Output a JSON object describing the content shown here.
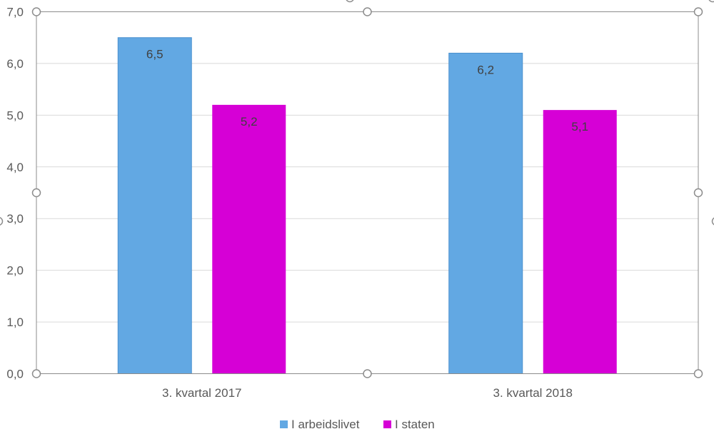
{
  "chart_data": {
    "type": "bar",
    "categories": [
      "3. kvartal 2017",
      "3. kvartal 2018"
    ],
    "series": [
      {
        "name": "I arbeidslivet",
        "values": [
          6.5,
          6.2
        ],
        "data_labels": [
          "6,5",
          "6,2"
        ],
        "color": "#62A8E3"
      },
      {
        "name": "I staten",
        "values": [
          5.2,
          5.1
        ],
        "data_labels": [
          "5,2",
          "5,1"
        ],
        "color": "#D600D6"
      }
    ],
    "ylim": [
      0,
      7
    ],
    "yticks": [
      0,
      1,
      2,
      3,
      4,
      5,
      6,
      7
    ],
    "ytick_labels": [
      "0,0",
      "1,0",
      "2,0",
      "3,0",
      "4,0",
      "5,0",
      "6,0",
      "7,0"
    ],
    "grid": true,
    "legend_position": "bottom",
    "title": "",
    "xlabel": "",
    "ylabel": ""
  },
  "colors": {
    "gridline": "#D9D9D9",
    "axis": "#BFBFBF",
    "text": "#595959",
    "selection_frame": "#8C8C8C"
  }
}
